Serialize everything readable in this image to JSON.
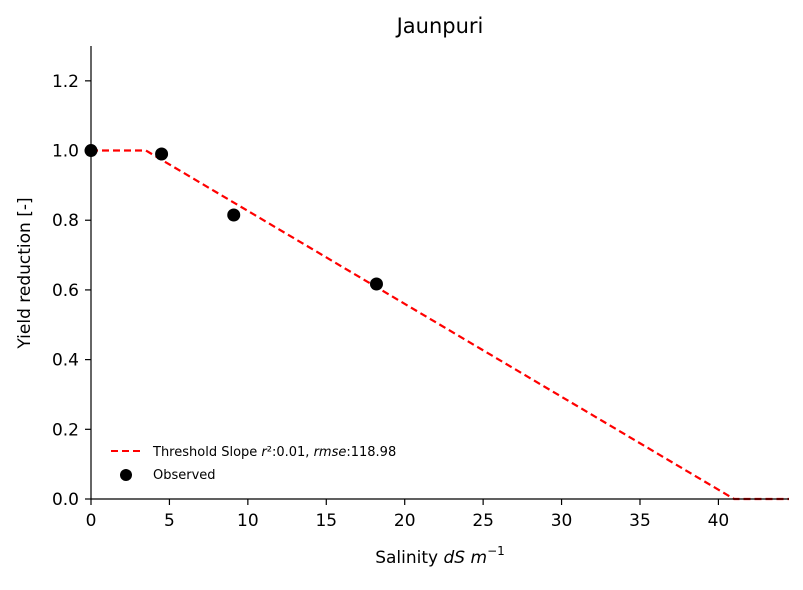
{
  "chart_data": {
    "type": "scatter",
    "title": "Jaunpuri",
    "xlabel_prefix": "Salinity ",
    "xlabel_math": "dS m",
    "xlabel_sup": "−1",
    "ylabel": "Yield reduction [-]",
    "xlim": [
      0,
      44.5
    ],
    "ylim": [
      0,
      1.3
    ],
    "xticks": [
      0,
      5,
      10,
      15,
      20,
      25,
      30,
      35,
      40
    ],
    "yticks": [
      0.0,
      0.2,
      0.4,
      0.6,
      0.8,
      1.0,
      1.2
    ],
    "xtick_labels": [
      "0",
      "5",
      "10",
      "15",
      "20",
      "25",
      "30",
      "35",
      "40"
    ],
    "ytick_labels": [
      "0.0",
      "0.2",
      "0.4",
      "0.6",
      "0.8",
      "1.0",
      "1.2"
    ],
    "grid": false,
    "legend_position": "lower-left",
    "series": [
      {
        "name": "Threshold Slope",
        "legend_parts": [
          "Threshold Slope ",
          "r",
          "²:0.01, ",
          "rmse",
          ":118.98"
        ],
        "kind": "line",
        "style": "dashed",
        "color": "#ff0000",
        "x": [
          0,
          3.5,
          41.0,
          44.5
        ],
        "y": [
          1.0,
          1.0,
          0.0,
          0.0
        ]
      },
      {
        "name": "Observed",
        "kind": "scatter",
        "color": "#000000",
        "x": [
          0,
          4.5,
          9.1,
          18.2
        ],
        "y": [
          1.0,
          0.99,
          0.815,
          0.617
        ]
      }
    ]
  }
}
